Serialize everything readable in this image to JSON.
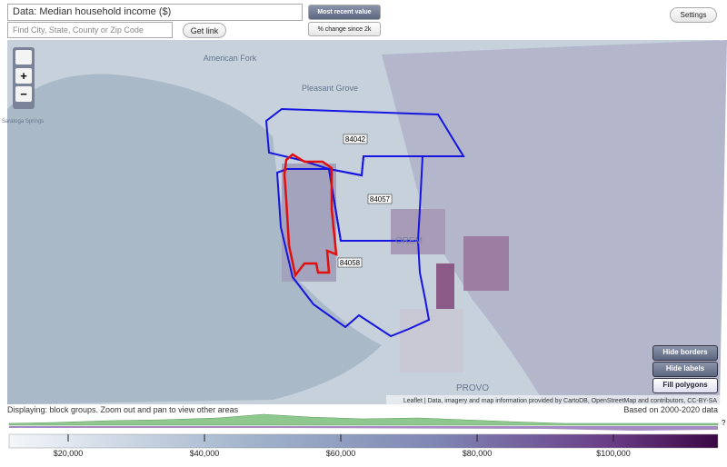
{
  "header": {
    "data_select": "Data: Median household income ($)",
    "most_recent": "Most recent value",
    "change": "% change since 2k",
    "settings": "Settings",
    "search_placeholder": "Find City, State, County or Zip Code",
    "get_link": "Get link"
  },
  "map": {
    "zoom_in": "+",
    "zoom_out": "−",
    "places": [
      "American Fork",
      "Pleasant Grove",
      "Saratoga Springs",
      "OREM",
      "PROVO"
    ],
    "zips": [
      "84042",
      "84057",
      "84058"
    ],
    "buttons": [
      "Hide borders",
      "Hide labels",
      "Fill polygons"
    ],
    "attribution": "Leaflet | Data, imagery and map information provided by CartoDB, OpenStreetMap and contributors, CC-BY-SA"
  },
  "footer": {
    "displaying": "Displaying: block groups. Zoom out and pan to view other areas",
    "based_on": "Based on 2000-2020 data",
    "help": "?"
  },
  "legend": {
    "range": [
      11333,
      115333
    ],
    "ticks": [
      {
        "value": 20000,
        "label": "$20,000"
      },
      {
        "value": 40000,
        "label": "$40,000"
      },
      {
        "value": 60000,
        "label": "$60,000"
      },
      {
        "value": 80000,
        "label": "$80,000"
      },
      {
        "value": 100000,
        "label": "$100,000"
      }
    ]
  }
}
